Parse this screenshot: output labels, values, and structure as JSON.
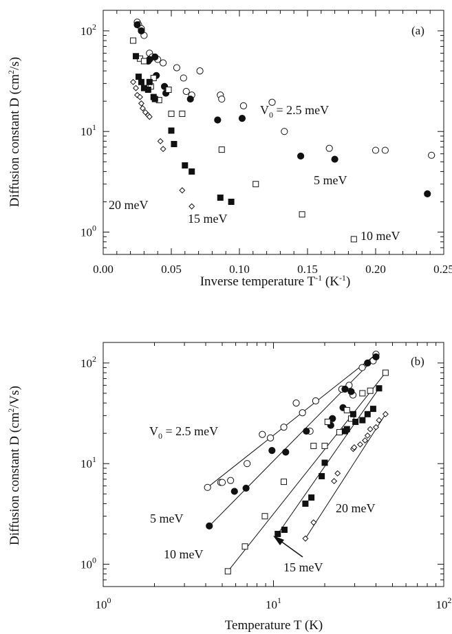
{
  "chart_data": [
    {
      "type": "scatter",
      "panel_label": "(a)",
      "xlabel": "Inverse temperature T^-1 (K^-1)",
      "ylabel": "Diffusion constant D (cm^2/s)",
      "x_scale": "linear",
      "y_scale": "log",
      "xlim": [
        0,
        0.25
      ],
      "ylim": [
        0.6,
        160
      ],
      "x_ticks": [
        "0.00",
        "0.05",
        "0.10",
        "0.15",
        "0.20",
        "0.25"
      ],
      "y_ticks": [
        "10^0",
        "10^1",
        "10^2"
      ],
      "grid": false,
      "annotations": [
        "V0 = 2.5 meV",
        "5 meV",
        "10 meV",
        "15 meV",
        "20 meV"
      ],
      "series": [
        {
          "label": "V0 = 2.5 meV",
          "marker": "open-circle",
          "x": [
            0.025,
            0.026,
            0.028,
            0.03,
            0.034,
            0.036,
            0.04,
            0.044,
            0.054,
            0.059,
            0.061,
            0.065,
            0.071,
            0.086,
            0.087,
            0.103,
            0.124,
            0.133,
            0.166,
            0.2,
            0.207,
            0.241
          ],
          "y": [
            122,
            115,
            105,
            90,
            60,
            55,
            52,
            48,
            43,
            34,
            25,
            23,
            40,
            23,
            21,
            18,
            19.5,
            10,
            6.8,
            6.5,
            6.5,
            5.8
          ]
        },
        {
          "label": "5 meV",
          "marker": "filled-circle",
          "x": [
            0.025,
            0.028,
            0.033,
            0.034,
            0.038,
            0.039,
            0.045,
            0.046,
            0.064,
            0.084,
            0.102,
            0.145,
            0.17,
            0.238
          ],
          "y": [
            115,
            100,
            50,
            52,
            55,
            36,
            28,
            24,
            21,
            13,
            13.5,
            5.7,
            5.3,
            2.4
          ]
        },
        {
          "label": "10 meV",
          "marker": "open-square",
          "x": [
            0.022,
            0.027,
            0.03,
            0.035,
            0.037,
            0.041,
            0.048,
            0.05,
            0.058,
            0.087,
            0.112,
            0.146,
            0.184
          ],
          "y": [
            80,
            53,
            50,
            28,
            34,
            20.5,
            26,
            15,
            15,
            6.6,
            3.0,
            1.5,
            0.85
          ]
        },
        {
          "label": "15 meV",
          "marker": "filled-square",
          "x": [
            0.024,
            0.026,
            0.028,
            0.03,
            0.033,
            0.034,
            0.037,
            0.038,
            0.05,
            0.052,
            0.06,
            0.065,
            0.086,
            0.094
          ],
          "y": [
            56,
            35,
            31,
            27,
            26,
            31,
            22,
            21,
            10.2,
            7.5,
            4.6,
            4.0,
            2.2,
            2.0
          ]
        },
        {
          "label": "20 meV",
          "marker": "open-diamond",
          "x": [
            0.022,
            0.024,
            0.025,
            0.027,
            0.028,
            0.029,
            0.031,
            0.033,
            0.034,
            0.042,
            0.044,
            0.058,
            0.065
          ],
          "y": [
            31,
            27,
            23,
            22,
            19,
            17,
            15.5,
            14.5,
            14,
            8,
            6.7,
            2.6,
            1.8
          ]
        }
      ]
    },
    {
      "type": "scatter",
      "panel_label": "(b)",
      "xlabel": "Temperature T (K)",
      "ylabel": "Diffusion constant D (cm^2/Vs)",
      "x_scale": "log",
      "y_scale": "log",
      "xlim": [
        1,
        100
      ],
      "ylim": [
        0.6,
        160
      ],
      "x_ticks": [
        "10^0",
        "10^1",
        "10^2"
      ],
      "y_ticks": [
        "10^0",
        "10^1",
        "10^2"
      ],
      "grid": false,
      "annotations": [
        "V0 = 2.5 meV",
        "5 meV",
        "10 meV",
        "15 meV",
        "20 meV"
      ],
      "series": [
        {
          "label": "V0 = 2.5 meV",
          "marker": "open-circle",
          "x": [
            4.1,
            4.9,
            5.0,
            5.6,
            7.0,
            8.6,
            9.6,
            11.5,
            13.6,
            14.8,
            16.4,
            17.7,
            25.2,
            27.8,
            29.3,
            33.2,
            38.5,
            40.0
          ],
          "y": [
            5.8,
            6.5,
            6.5,
            6.8,
            10,
            19.5,
            18,
            23,
            40,
            32,
            21,
            42,
            55,
            60,
            48,
            90,
            105,
            122
          ],
          "fit": {
            "x": [
              4.1,
              40.0
            ],
            "y": [
              5.8,
              122
            ]
          }
        },
        {
          "label": "5 meV",
          "marker": "filled-circle",
          "x": [
            4.2,
            5.9,
            6.9,
            9.8,
            11.8,
            15.6,
            21.7,
            22.2,
            25.6,
            26.3,
            28.6,
            35.7,
            40.0
          ],
          "y": [
            2.4,
            5.3,
            5.7,
            13.5,
            13,
            21,
            24,
            28,
            36,
            55,
            52,
            100,
            115
          ],
          "fit": {
            "x": [
              4.2,
              40.0
            ],
            "y": [
              2.4,
              115
            ]
          }
        },
        {
          "label": "10 meV",
          "marker": "open-square",
          "x": [
            5.4,
            6.8,
            8.9,
            11.5,
            17.2,
            20.0,
            20.8,
            24.4,
            27.0,
            28.6,
            33.3,
            37.0,
            45.5
          ],
          "y": [
            0.85,
            1.5,
            3.0,
            6.6,
            15,
            15,
            26,
            20.5,
            34,
            28,
            50,
            53,
            80
          ],
          "fit": {
            "x": [
              5.4,
              45.5
            ],
            "y": [
              0.85,
              80
            ]
          }
        },
        {
          "label": "15 meV",
          "marker": "filled-square",
          "x": [
            10.6,
            11.6,
            15.4,
            16.7,
            19.2,
            20.0,
            26.3,
            27.0,
            29.4,
            30.3,
            33.3,
            35.7,
            38.5,
            41.7
          ],
          "y": [
            2.0,
            2.2,
            4.0,
            4.6,
            7.5,
            10.2,
            21,
            22,
            31,
            26,
            27,
            31,
            35,
            56
          ],
          "fit": {
            "x": [
              10.6,
              41.7
            ],
            "y": [
              2.0,
              56
            ]
          }
        },
        {
          "label": "20 meV",
          "marker": "open-diamond",
          "x": [
            15.4,
            17.2,
            22.7,
            23.8,
            29.4,
            29.8,
            32.3,
            34.5,
            35.7,
            37.0,
            40.0,
            41.7,
            45.5
          ],
          "y": [
            1.8,
            2.6,
            6.7,
            8,
            14,
            14.5,
            15.5,
            17,
            19,
            22,
            23,
            27,
            31
          ],
          "fit": {
            "x": [
              15.4,
              45.5
            ],
            "y": [
              1.8,
              31
            ]
          }
        }
      ]
    }
  ]
}
